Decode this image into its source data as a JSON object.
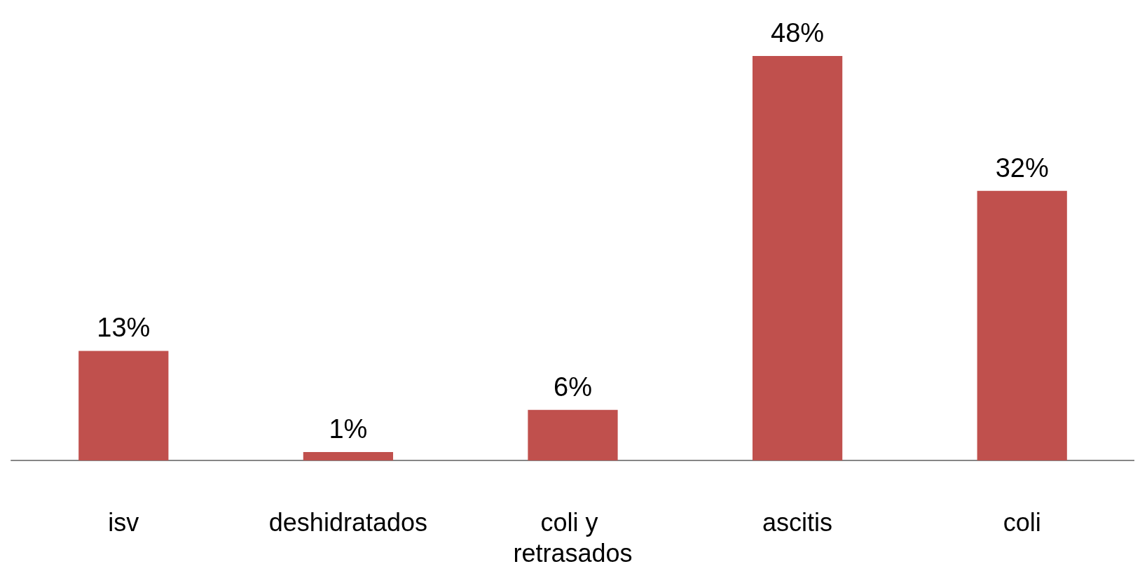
{
  "chart_data": {
    "type": "bar",
    "categories": [
      "isv",
      "deshidratados",
      "coli y retrasados",
      "ascitis",
      "coli"
    ],
    "values": [
      13,
      1,
      6,
      48,
      32
    ],
    "color": "#c0504d",
    "value_labels": [
      "13%",
      "1%",
      "6%",
      "48%",
      "32%"
    ]
  }
}
